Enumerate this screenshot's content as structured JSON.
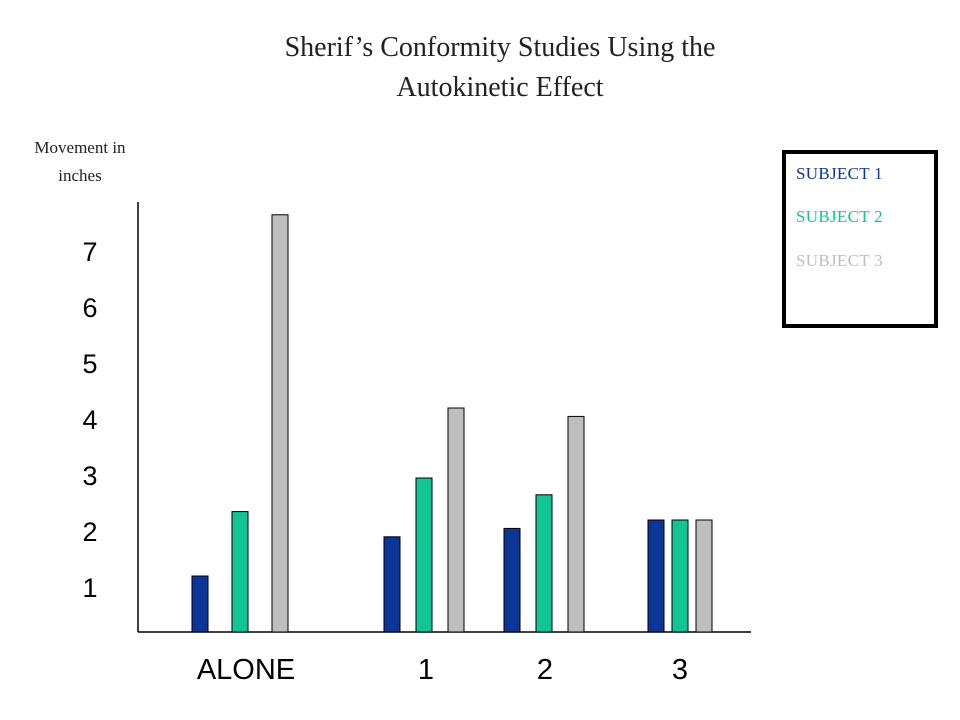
{
  "chart_data": {
    "type": "bar",
    "title_line1": "Sherif’s Conformity Studies Using the",
    "title_line2": "Autokinetic Effect",
    "ylabel_line1": "Movement in",
    "ylabel_line2": "inches",
    "xlabel": "",
    "categories": [
      "ALONE",
      "1",
      "2",
      "3"
    ],
    "y_ticks": [
      "1",
      "2",
      "3",
      "4",
      "5",
      "6",
      "7"
    ],
    "ylim": [
      0,
      8
    ],
    "series": [
      {
        "name": "SUBJECT 1",
        "color": "#0b3596",
        "values": [
          1.0,
          1.7,
          1.85,
          2.0
        ]
      },
      {
        "name": "SUBJECT 2",
        "color": "#12c493",
        "values": [
          2.15,
          2.75,
          2.45,
          2.0
        ]
      },
      {
        "name": "SUBJECT 3",
        "color": "#bebebe",
        "values": [
          7.45,
          4.0,
          3.85,
          2.0
        ]
      }
    ],
    "grid": false,
    "legend_position": "right"
  }
}
